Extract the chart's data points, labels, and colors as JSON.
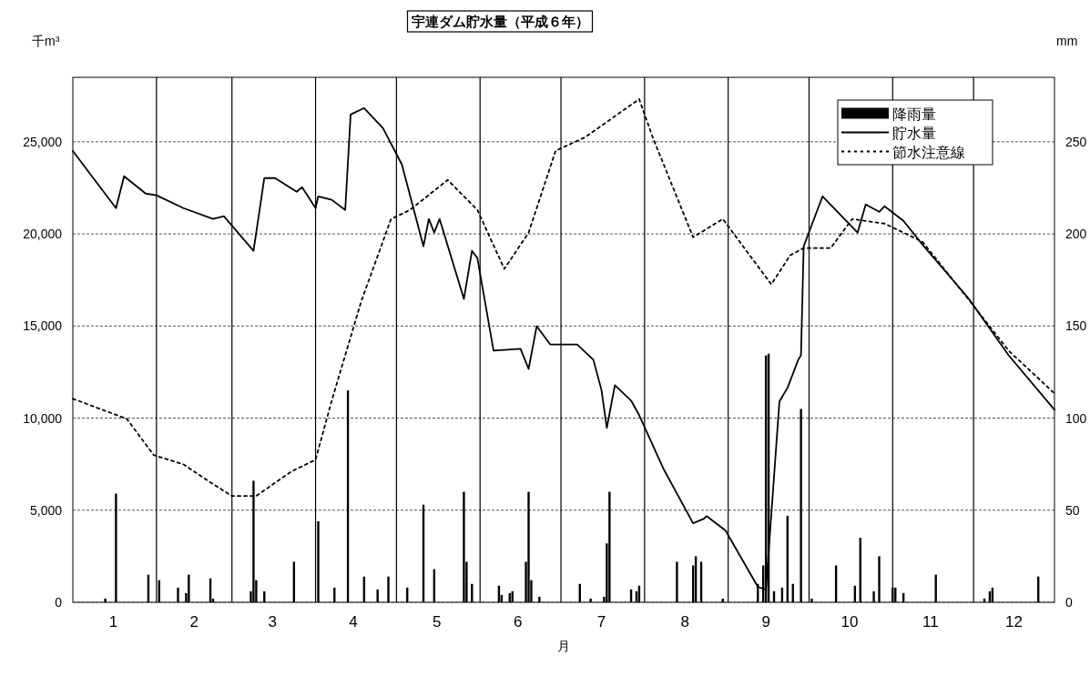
{
  "chart_data": {
    "type": "line",
    "title": "宇連ダム貯水量（平成６年）",
    "ylabel": "千m³",
    "y2label": "mm",
    "xlabel": "月",
    "xlim": [
      "--01-01",
      "--12-31"
    ],
    "xticks": [
      {
        "value": "--01-16",
        "label": "1"
      },
      {
        "value": "--02-15",
        "label": "2"
      },
      {
        "value": "--03-16",
        "label": "3"
      },
      {
        "value": "--04-15",
        "label": "4"
      },
      {
        "value": "--05-16",
        "label": "5"
      },
      {
        "value": "--06-15",
        "label": "6"
      },
      {
        "value": "--07-16",
        "label": "7"
      },
      {
        "value": "--08-16",
        "label": "8"
      },
      {
        "value": "--09-15",
        "label": "9"
      },
      {
        "value": "--10-16",
        "label": "10"
      },
      {
        "value": "--11-15",
        "label": "11"
      },
      {
        "value": "--12-16",
        "label": "12"
      }
    ],
    "ylim": [
      0,
      28500
    ],
    "yticks": [
      0,
      {
        "value": 5000,
        "label": "5,000"
      },
      {
        "value": 10000,
        "label": "10,000"
      },
      {
        "value": 15000,
        "label": "15,000"
      },
      {
        "value": 20000,
        "label": "20,000"
      },
      {
        "value": 25000,
        "label": "25,000"
      }
    ],
    "y2lim": [
      0,
      285
    ],
    "y2ticks": [
      0,
      50,
      100,
      150,
      200,
      250
    ],
    "grid": "y",
    "legend": "top right",
    "marker": "none",
    "ref_lines": [
      {
        "axis": "x",
        "value": "--02-01",
        "color": "#000000"
      },
      {
        "axis": "x",
        "value": "--03-01",
        "color": "#000000"
      },
      {
        "axis": "x",
        "value": "--04-01",
        "color": "#000000"
      },
      {
        "axis": "x",
        "value": "--05-01",
        "color": "#000000"
      },
      {
        "axis": "x",
        "value": "--06-01",
        "color": "#000000"
      },
      {
        "axis": "x",
        "value": "--07-01",
        "color": "#000000"
      },
      {
        "axis": "x",
        "value": "--08-01",
        "color": "#000000"
      },
      {
        "axis": "x",
        "value": "--09-01",
        "color": "#000000"
      },
      {
        "axis": "x",
        "value": "--10-01",
        "color": "#000000"
      },
      {
        "axis": "x",
        "value": "--11-01",
        "color": "#000000"
      },
      {
        "axis": "x",
        "value": "--12-01",
        "color": "#000000"
      }
    ],
    "series": [
      {
        "name": "降雨量",
        "type": "bar",
        "axis": "y2",
        "color": "#000000",
        "x": [
          "--01-13",
          "--01-17",
          "--01-29",
          "--02-02",
          "--02-09",
          "--02-12",
          "--02-13",
          "--02-21",
          "--02-22",
          "--03-08",
          "--03-09",
          "--03-10",
          "--03-13",
          "--03-24",
          "--04-02",
          "--04-08",
          "--04-13",
          "--04-19",
          "--04-24",
          "--04-28",
          "--05-05",
          "--05-11",
          "--05-15",
          "--05-26",
          "--05-27",
          "--05-29",
          "--06-08",
          "--06-09",
          "--06-12",
          "--06-13",
          "--06-18",
          "--06-19",
          "--06-20",
          "--06-23",
          "--07-08",
          "--07-12",
          "--07-17",
          "--07-18",
          "--07-19",
          "--07-27",
          "--07-29",
          "--07-30",
          "--08-13",
          "--08-19",
          "--08-20",
          "--08-22",
          "--08-30",
          "--09-12",
          "--09-14",
          "--09-15",
          "--09-16",
          "--09-18",
          "--09-21",
          "--09-23",
          "--09-25",
          "--09-28",
          "--10-02",
          "--10-11",
          "--10-18",
          "--10-20",
          "--10-25",
          "--10-27",
          "--11-01",
          "--11-02",
          "--11-05",
          "--11-17",
          "--12-05",
          "--12-07",
          "--12-08",
          "--12-25"
        ],
        "values": [
          2,
          59,
          15,
          12,
          8,
          5,
          15,
          13,
          2,
          6,
          66,
          12,
          6,
          22,
          44,
          8,
          115,
          14,
          7,
          14,
          8,
          53,
          18,
          60,
          22,
          10,
          9,
          4,
          5,
          6,
          22,
          60,
          12,
          3,
          10,
          2,
          3,
          32,
          60,
          7,
          6,
          9,
          22,
          20,
          25,
          22,
          2,
          10,
          20,
          134,
          135,
          6,
          8,
          47,
          10,
          105,
          2,
          20,
          9,
          35,
          6,
          25,
          8,
          8,
          5,
          15,
          2,
          6,
          8,
          14
        ]
      },
      {
        "name": "貯水量",
        "color": "#000000",
        "line_style": "solid",
        "x": [
          "--01-01",
          "--01-17",
          "--01-20",
          "--01-28",
          "--02-01",
          "--02-11",
          "--02-22",
          "--02-26",
          "--03-09",
          "--03-13",
          "--03-17",
          "--03-25",
          "--03-27",
          "--04-01",
          "--04-02",
          "--04-07",
          "--04-12",
          "--04-14",
          "--04-19",
          "--04-26",
          "--05-03",
          "--05-11",
          "--05-13",
          "--05-15",
          "--05-17",
          "--05-26",
          "--05-29",
          "--05-31",
          "--06-06",
          "--06-16",
          "--06-19",
          "--06-22",
          "--06-27",
          "--07-07",
          "--07-13",
          "--07-16",
          "--07-18",
          "--07-21",
          "--07-27",
          "--07-30",
          "--08-08",
          "--08-19",
          "--08-23",
          "--08-24",
          "--08-31",
          "--09-12",
          "--09-15",
          "--09-20",
          "--09-23",
          "--09-27",
          "--09-28",
          "--09-29",
          "--10-06",
          "--10-19",
          "--10-22",
          "--10-27",
          "--10-29",
          "--11-05",
          "--11-12",
          "--11-29",
          "--12-14",
          "--12-31"
        ],
        "values": [
          24500,
          21400,
          23130,
          22190,
          22100,
          21400,
          20810,
          20960,
          19080,
          23030,
          23030,
          22290,
          22540,
          21400,
          22040,
          21850,
          21300,
          26480,
          26830,
          25740,
          23770,
          19330,
          20810,
          20070,
          20810,
          16470,
          19080,
          18690,
          13660,
          13760,
          12670,
          14990,
          14000,
          14000,
          13170,
          11540,
          9470,
          11790,
          10950,
          10160,
          7250,
          4290,
          4540,
          4680,
          3900,
          840,
          690,
          10900,
          11640,
          13170,
          13410,
          19330,
          22040,
          20070,
          21600,
          21200,
          21500,
          20710,
          19430,
          16520,
          13410,
          10450
        ]
      },
      {
        "name": "節水注意線",
        "color": "#000000",
        "line_style": "dotted",
        "x": [
          "--01-01",
          "--01-21",
          "--01-31",
          "--02-11",
          "--02-21",
          "--03-01",
          "--03-10",
          "--03-23",
          "--04-01",
          "--04-07",
          "--04-18",
          "--04-29",
          "--05-06",
          "--05-20",
          "--05-31",
          "--06-10",
          "--06-19",
          "--06-29",
          "--07-10",
          "--07-30",
          "--08-04",
          "--08-19",
          "--08-30",
          "--09-17",
          "--09-24",
          "--09-29",
          "--10-09",
          "--10-17",
          "--10-29",
          "--11-12",
          "--11-29",
          "--12-14",
          "--12-31"
        ],
        "values": [
          11050,
          9960,
          7990,
          7490,
          6510,
          5770,
          5770,
          7100,
          7740,
          10950,
          16370,
          20810,
          21300,
          22930,
          21300,
          18100,
          20070,
          24510,
          25250,
          27320,
          25250,
          19820,
          20810,
          17260,
          18840,
          19230,
          19230,
          20810,
          20560,
          19580,
          16470,
          13660,
          11340
        ]
      }
    ]
  }
}
